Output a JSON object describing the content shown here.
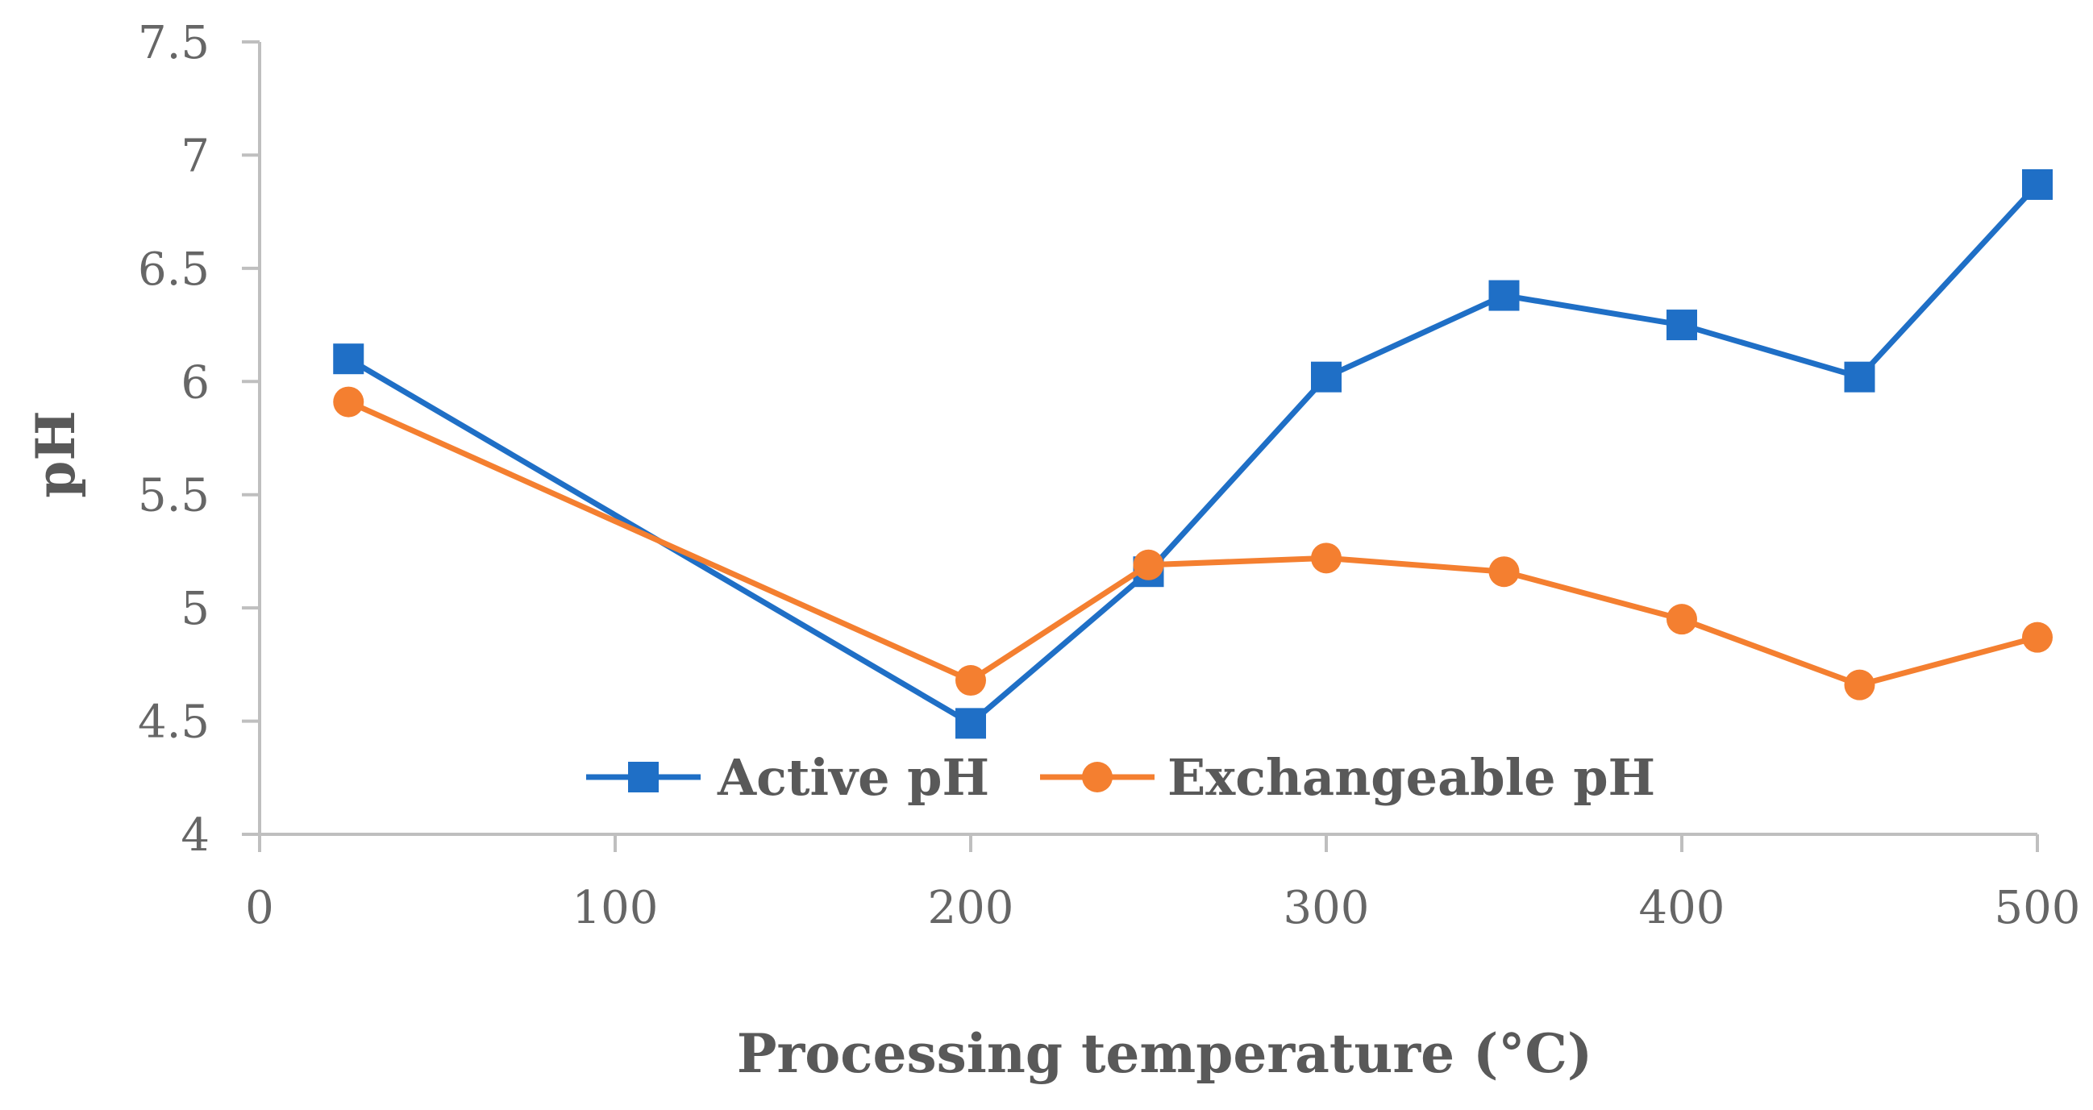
{
  "chart_data": {
    "type": "line",
    "title": "",
    "xlabel": "Processing temperature (°C)",
    "ylabel": "pH",
    "xlim": [
      0,
      500
    ],
    "ylim": [
      4,
      7.5
    ],
    "x_ticks": [
      "0",
      "100",
      "200",
      "300",
      "400",
      "500"
    ],
    "y_ticks": [
      "4",
      "4.5",
      "5",
      "5.5",
      "6",
      "6.5",
      "7",
      "7.5"
    ],
    "x": [
      25,
      200,
      250,
      300,
      350,
      400,
      450,
      500
    ],
    "grid": false,
    "legend_position": "bottom-inside",
    "series": [
      {
        "name": "Active pH",
        "color": "#1f6fc6",
        "marker": "square",
        "values": [
          6.1,
          4.49,
          5.16,
          6.02,
          6.38,
          6.25,
          6.02,
          6.87
        ]
      },
      {
        "name": "Exchangeable pH",
        "color": "#f47f30",
        "marker": "circle",
        "values": [
          5.91,
          4.68,
          5.19,
          5.22,
          5.16,
          4.95,
          4.66,
          4.87
        ]
      }
    ]
  }
}
